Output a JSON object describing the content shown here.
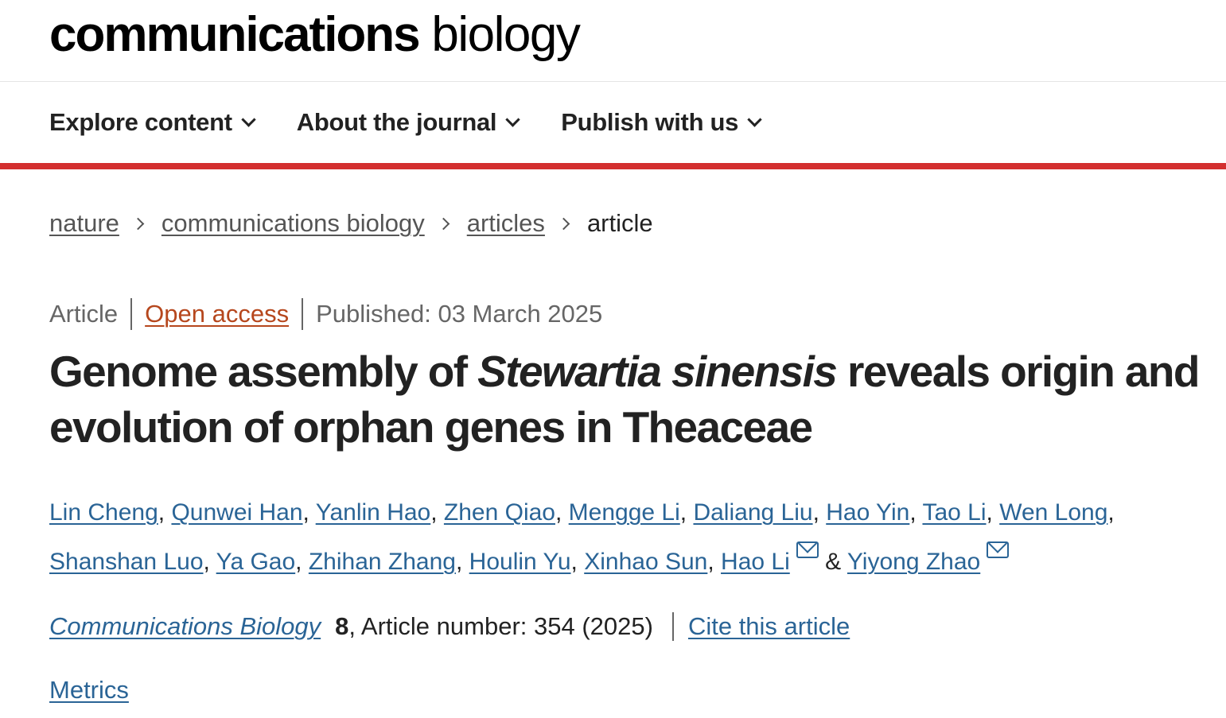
{
  "logo": {
    "bold": "communications",
    "light": "biology"
  },
  "nav": [
    {
      "label": "Explore content"
    },
    {
      "label": "About the journal"
    },
    {
      "label": "Publish with us"
    }
  ],
  "breadcrumb": [
    "nature",
    "communications biology",
    "articles",
    "article"
  ],
  "meta": {
    "type": "Article",
    "access": "Open access",
    "published": "Published: 03 March 2025"
  },
  "title": {
    "pre": "Genome assembly of ",
    "italic": "Stewartia sinensis",
    "post": " reveals origin and evolution of orphan genes in Theaceae"
  },
  "authors": [
    "Lin Cheng",
    "Qunwei Han",
    "Yanlin Hao",
    "Zhen Qiao",
    "Mengge Li",
    "Daliang Liu",
    "Hao Yin",
    "Tao Li",
    "Wen Long",
    "Shanshan Luo",
    "Ya Gao",
    "Zhihan Zhang",
    "Houlin Yu",
    "Xinhao Sun",
    "Hao Li",
    "Yiyong Zhao"
  ],
  "corresponding": [
    "Hao Li",
    "Yiyong Zhao"
  ],
  "author_and": "&",
  "citation": {
    "journal": "Communications Biology",
    "volume": "8",
    "rest": ", Article number: 354 (2025)",
    "cite_label": "Cite this article"
  },
  "metrics_label": "Metrics",
  "colors": {
    "accent_red": "#d32f2f",
    "link": "#2a6496",
    "open_access": "#b6471d"
  }
}
